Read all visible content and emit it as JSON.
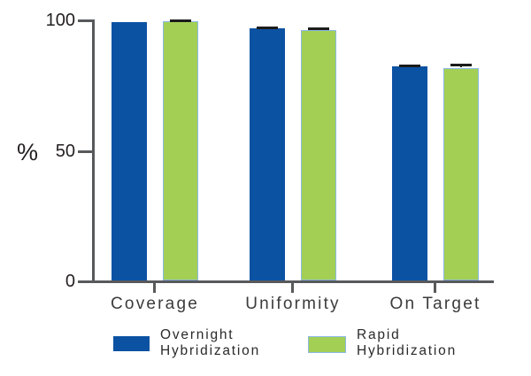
{
  "chart_data": {
    "type": "bar",
    "title": "",
    "ylabel": "%",
    "xlabel": "",
    "categories": [
      "Coverage",
      "Uniformity",
      "On Target"
    ],
    "series": [
      {
        "name": "Overnight Hybridization",
        "color": "#0B52A3",
        "values": [
          99,
          96.5,
          82
        ],
        "errors": [
          0,
          0.7,
          0.7
        ]
      },
      {
        "name": "Rapid Hybridization",
        "color": "#A3CF55",
        "border_color": "#8BB8E2",
        "values": [
          99.4,
          96,
          81.5
        ],
        "errors": [
          0.5,
          1.0,
          1.4
        ]
      }
    ],
    "y_ticks": [
      {
        "label": "100",
        "value": 100
      },
      {
        "label": "50",
        "value": 50
      },
      {
        "label": "0",
        "value": 0
      }
    ],
    "ylim": [
      0,
      100
    ],
    "grid": false,
    "legend_position": "bottom",
    "error_bar_color": "#1C1C1C",
    "axis_color": "#58595B",
    "tick_label_color": "#231F20",
    "category_label_color": "#3B3B3C",
    "legend_text_color": "#2A2A2A",
    "background_color": "#FFFFFF"
  }
}
